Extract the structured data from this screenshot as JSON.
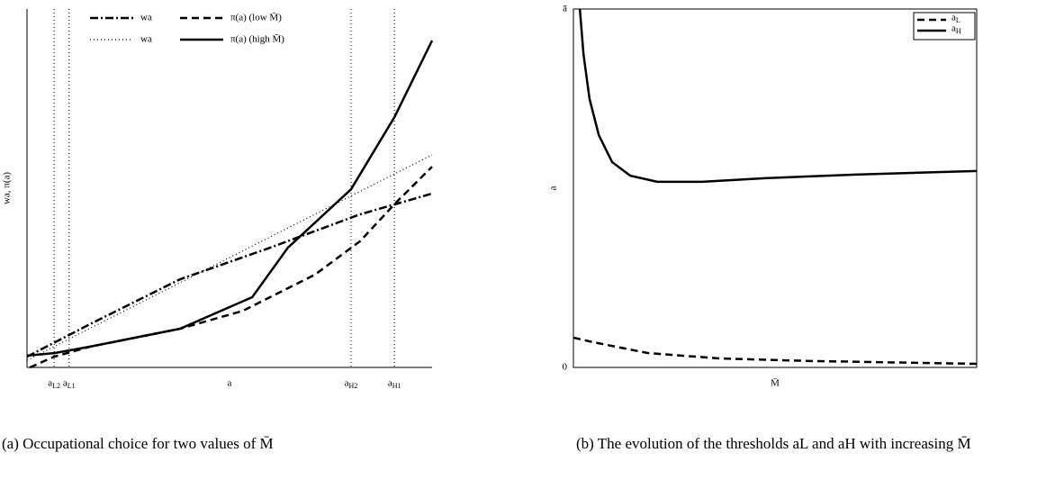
{
  "chart_data": [
    {
      "type": "line",
      "ylabel": "wa, π(a)",
      "xlabel": "a",
      "xlim": [
        0,
        100
      ],
      "ylim": [
        0,
        100
      ],
      "xticks": [
        {
          "value": 6.7,
          "label": "aL2"
        },
        {
          "value": 10.4,
          "label": "aL1"
        },
        {
          "value": 80,
          "label": "aH2"
        },
        {
          "value": 90.7,
          "label": "aH1"
        }
      ],
      "yticks": [],
      "grid": true,
      "box": false,
      "legend": "upper center",
      "legend_columns": 2,
      "series": [
        {
          "name": "wa",
          "color": "#000000",
          "style": "dashdot",
          "x": [
            0,
            15.6,
            37.8,
            60,
            82.2,
            100
          ],
          "values": [
            3,
            12.1,
            24.6,
            33.4,
            42.7,
            48.5
          ]
        },
        {
          "name": "π(a) (low M̄)",
          "color": "#000000",
          "style": "dashed",
          "x": [
            0.7,
            6.7,
            15.6,
            37.8,
            53.3,
            71.1,
            82.2,
            91.1,
            100
          ],
          "values": [
            0,
            3,
            5.8,
            10.8,
            15.8,
            25.9,
            35.2,
            46,
            56
          ]
        },
        {
          "name": "wa",
          "color": "#000000",
          "style": "dotted",
          "x": [
            0,
            100
          ],
          "values": [
            2,
            59.3
          ]
        },
        {
          "name": "π(a) (high M̄)",
          "color": "#000000",
          "style": "solid",
          "x": [
            0,
            6.7,
            15.6,
            37.8,
            55.6,
            64.4,
            80,
            90.7,
            100
          ],
          "values": [
            3.3,
            4,
            5.8,
            10.8,
            19.6,
            33.4,
            49.7,
            69.8,
            91.2
          ]
        }
      ],
      "caption": "(a) Occupational choice for two values of M̄"
    },
    {
      "type": "line",
      "ylabel": "a",
      "xlabel": "M̄",
      "xlim": [
        0,
        100
      ],
      "ylim": [
        0,
        100
      ],
      "xticks": [],
      "yticks": [
        0,
        {
          "value": 100,
          "label": "ā"
        }
      ],
      "grid": false,
      "box": true,
      "legend": "upper right",
      "legend_columns": 1,
      "series": [
        {
          "name": "aL",
          "color": "#000000",
          "style": "dashed",
          "x": [
            0,
            5.1,
            18.5,
            36.4,
            58.7,
            100
          ],
          "values": [
            8.3,
            7,
            4,
            2.5,
            1.8,
            1
          ]
        },
        {
          "name": "aH",
          "color": "#000000",
          "style": "solid",
          "x": [
            1.6,
            2.5,
            4,
            6.3,
            9.6,
            14.1,
            20.8,
            31.9,
            47.5,
            69.9,
            100
          ],
          "values": [
            100,
            87.4,
            74.9,
            64.8,
            57.3,
            53.5,
            51.8,
            51.8,
            52.8,
            53.8,
            54.8
          ]
        }
      ],
      "caption": "(b) The evolution of the thresholds aL and aH with increasing M̄"
    }
  ]
}
